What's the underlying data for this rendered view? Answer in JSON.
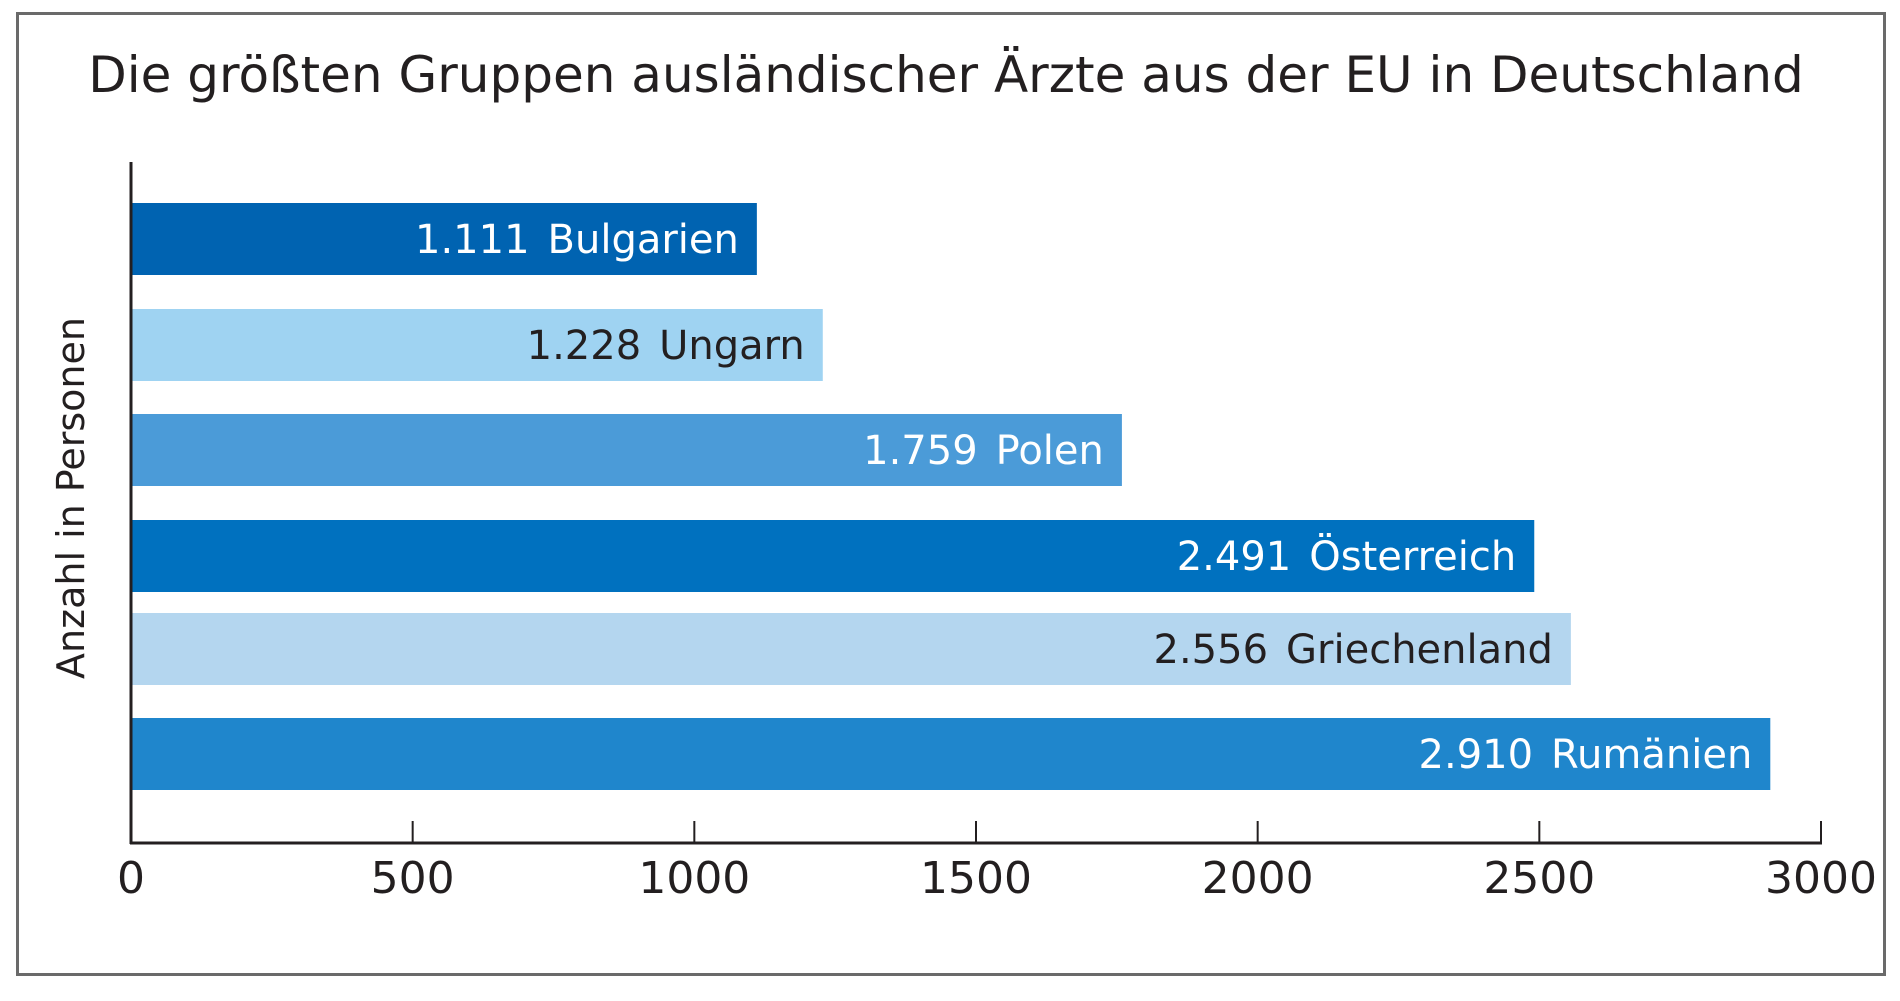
{
  "chart_data": {
    "type": "bar",
    "orientation": "horizontal",
    "title": "Die größten Gruppen ausländischer Ärzte aus der EU in Deutschland",
    "ylabel": "Anzahl in Personen",
    "xlabel": "",
    "xlim": [
      0,
      3000
    ],
    "x_ticks": [
      "0",
      "500",
      "1000",
      "1500",
      "2000",
      "2500",
      "3000"
    ],
    "grid": false,
    "legend": "none",
    "bars": [
      {
        "category": "Bulgarien",
        "value": 1111,
        "value_label": "1.111",
        "color": "#0063b1",
        "text_color": "#ffffff"
      },
      {
        "category": "Ungarn",
        "value": 1228,
        "value_label": "1.228",
        "color": "#9fd3f2",
        "text_color": "#231f20"
      },
      {
        "category": "Polen",
        "value": 1759,
        "value_label": "1.759",
        "color": "#4b9bd8",
        "text_color": "#ffffff"
      },
      {
        "category": "Österreich",
        "value": 2491,
        "value_label": "2.491",
        "color": "#0071bf",
        "text_color": "#ffffff"
      },
      {
        "category": "Griechenland",
        "value": 2556,
        "value_label": "2.556",
        "color": "#b4d6ef",
        "text_color": "#231f20"
      },
      {
        "category": "Rumänien",
        "value": 2910,
        "value_label": "2.910",
        "color": "#1f86cc",
        "text_color": "#ffffff"
      }
    ]
  }
}
